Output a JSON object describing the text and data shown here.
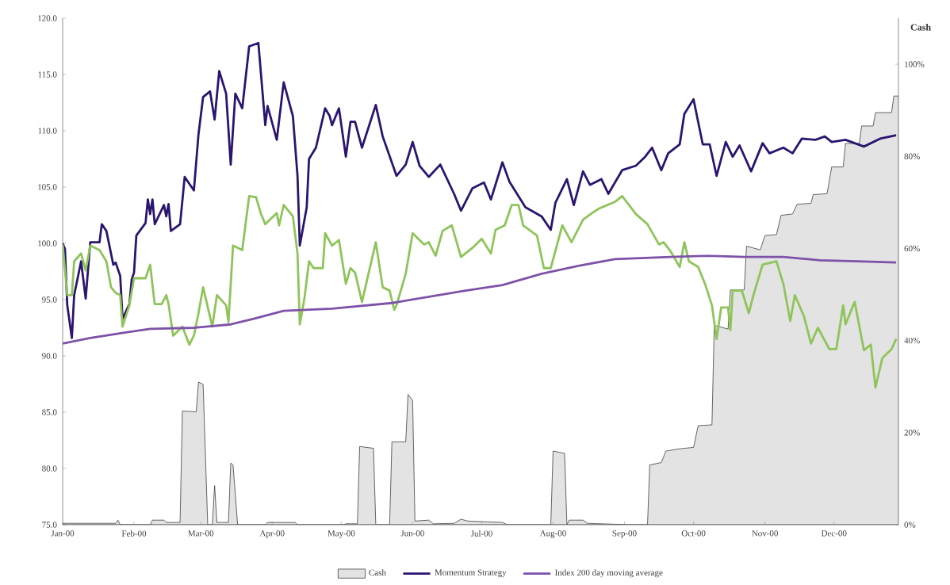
{
  "chart_data": {
    "type": "line",
    "y2label": "Cash",
    "legend": "bottom",
    "xlim": [
      "2000-01-01",
      "2000-12-29"
    ],
    "xticks": [
      {
        "value": "2000-01-01",
        "label": "Jan-00"
      },
      {
        "value": "2000-02-01",
        "label": "Feb-00"
      },
      {
        "value": "2000-03-01",
        "label": "Mar-00"
      },
      {
        "value": "2000-04-01",
        "label": "Apr-00"
      },
      {
        "value": "2000-05-01",
        "label": "May-00"
      },
      {
        "value": "2000-06-01",
        "label": "Jun-00"
      },
      {
        "value": "2000-07-01",
        "label": "Jul-00"
      },
      {
        "value": "2000-08-01",
        "label": "Aug-00"
      },
      {
        "value": "2000-09-01",
        "label": "Sep-00"
      },
      {
        "value": "2000-10-01",
        "label": "Oct-00"
      },
      {
        "value": "2000-11-01",
        "label": "Nov-00"
      },
      {
        "value": "2000-12-01",
        "label": "Dec-00"
      }
    ],
    "ylim": [
      75,
      120
    ],
    "yticks": [
      {
        "value": 75,
        "label": "75.0"
      },
      {
        "value": 80,
        "label": "80.0"
      },
      {
        "value": 85,
        "label": "85.0"
      },
      {
        "value": 90,
        "label": "90.0"
      },
      {
        "value": 95,
        "label": "95.0"
      },
      {
        "value": 100,
        "label": "100.0"
      },
      {
        "value": 105,
        "label": "105.0"
      },
      {
        "value": 110,
        "label": "110.0"
      },
      {
        "value": 115,
        "label": "115.0"
      },
      {
        "value": 120,
        "label": "120.0"
      }
    ],
    "y2lim": [
      0,
      110
    ],
    "y2ticks": [
      {
        "value": 0,
        "label": "0%"
      },
      {
        "value": 20,
        "label": "20%"
      },
      {
        "value": 40,
        "label": "40%"
      },
      {
        "value": 60,
        "label": "60%"
      },
      {
        "value": 80,
        "label": "80%"
      },
      {
        "value": 100,
        "label": "100%"
      }
    ],
    "series": [
      {
        "name": "Cash",
        "type": "area",
        "axis": "y2",
        "color": "#e3e3e3",
        "x": [
          "2000-01-01",
          "2000-01-24",
          "2000-01-25",
          "2000-01-26",
          "2000-02-08",
          "2000-02-09",
          "2000-02-14",
          "2000-02-15",
          "2000-02-21",
          "2000-02-22",
          "2000-02-28",
          "2000-02-29",
          "2000-03-02",
          "2000-03-04",
          "2000-03-06",
          "2000-03-07",
          "2000-03-08",
          "2000-03-13",
          "2000-03-14",
          "2000-03-15",
          "2000-03-17",
          "2000-03-29",
          "2000-03-30",
          "2000-04-11",
          "2000-04-12",
          "2000-05-02",
          "2000-05-03",
          "2000-05-08",
          "2000-05-09",
          "2000-05-15",
          "2000-05-16",
          "2000-05-22",
          "2000-05-23",
          "2000-05-29",
          "2000-05-30",
          "2000-06-01",
          "2000-06-02",
          "2000-06-08",
          "2000-06-10",
          "2000-06-19",
          "2000-06-22",
          "2000-06-25",
          "2000-07-10",
          "2000-07-12",
          "2000-07-31",
          "2000-08-01",
          "2000-08-06",
          "2000-08-07",
          "2000-08-08",
          "2000-08-14",
          "2000-08-16",
          "2000-09-03",
          "2000-09-11",
          "2000-09-12",
          "2000-09-17",
          "2000-09-19",
          "2000-09-25",
          "2000-10-01",
          "2000-10-03",
          "2000-10-09",
          "2000-10-10",
          "2000-10-16",
          "2000-10-17",
          "2000-10-23",
          "2000-10-24",
          "2000-10-30",
          "2000-11-01",
          "2000-11-06",
          "2000-11-08",
          "2000-11-13",
          "2000-11-15",
          "2000-11-21",
          "2000-11-22",
          "2000-11-28",
          "2000-11-30",
          "2000-12-05",
          "2000-12-06",
          "2000-12-12",
          "2000-12-13",
          "2000-12-18",
          "2000-12-19",
          "2000-12-26",
          "2000-12-27",
          "2000-12-29"
        ],
        "values": [
          0.3,
          0.3,
          1,
          0,
          0,
          1,
          1,
          0.5,
          0.5,
          24.7,
          24.5,
          31,
          30.5,
          0,
          0,
          8.5,
          0.5,
          0.5,
          13.4,
          13,
          0,
          0,
          0.5,
          0.5,
          0,
          0,
          0.2,
          0.2,
          17,
          16.6,
          0,
          0,
          18,
          18,
          28.3,
          27,
          0.8,
          1,
          0.2,
          0.3,
          1.2,
          0.8,
          0.5,
          0,
          0,
          16,
          15.5,
          0,
          1,
          1,
          0.3,
          0,
          0,
          13,
          13.5,
          16,
          16.5,
          16.8,
          21.5,
          21.7,
          43.3,
          42.5,
          51,
          51,
          60.5,
          59.7,
          62.8,
          63,
          67.2,
          67.5,
          69.6,
          69.8,
          71.7,
          71.9,
          77.7,
          77.7,
          82.8,
          82.8,
          86.6,
          86.6,
          89.5,
          89.5,
          93.1,
          93.1
        ]
      },
      {
        "name": "Momentum Strategy",
        "color": "#2b1570",
        "x": [
          "2000-01-01",
          "2000-01-02",
          "2000-01-03",
          "2000-01-05",
          "2000-01-06",
          "2000-01-09",
          "2000-01-11",
          "2000-01-13",
          "2000-01-17",
          "2000-01-18",
          "2000-01-20",
          "2000-01-23",
          "2000-01-24",
          "2000-01-26",
          "2000-01-27",
          "2000-01-30",
          "2000-01-31",
          "2000-02-01",
          "2000-02-02",
          "2000-02-06",
          "2000-02-07",
          "2000-02-08",
          "2000-02-09",
          "2000-02-10",
          "2000-02-14",
          "2000-02-15",
          "2000-02-16",
          "2000-02-17",
          "2000-02-21",
          "2000-02-23",
          "2000-02-27",
          "2000-02-29",
          "2000-03-02",
          "2000-03-05",
          "2000-03-07",
          "2000-03-09",
          "2000-03-12",
          "2000-03-14",
          "2000-03-16",
          "2000-03-19",
          "2000-03-22",
          "2000-03-26",
          "2000-03-29",
          "2000-03-30",
          "2000-04-03",
          "2000-04-06",
          "2000-04-10",
          "2000-04-12",
          "2000-04-13",
          "2000-04-16",
          "2000-04-17",
          "2000-04-20",
          "2000-04-24",
          "2000-04-26",
          "2000-04-27",
          "2000-04-30",
          "2000-05-03",
          "2000-05-05",
          "2000-05-07",
          "2000-05-10",
          "2000-05-16",
          "2000-05-19",
          "2000-05-25",
          "2000-05-29",
          "2000-06-01",
          "2000-06-04",
          "2000-06-08",
          "2000-06-13",
          "2000-06-19",
          "2000-06-22",
          "2000-06-27",
          "2000-07-02",
          "2000-07-05",
          "2000-07-10",
          "2000-07-13",
          "2000-07-20",
          "2000-07-27",
          "2000-07-31",
          "2000-08-02",
          "2000-08-07",
          "2000-08-10",
          "2000-08-14",
          "2000-08-17",
          "2000-08-22",
          "2000-08-25",
          "2000-08-31",
          "2000-09-06",
          "2000-09-10",
          "2000-09-13",
          "2000-09-17",
          "2000-09-20",
          "2000-09-25",
          "2000-09-27",
          "2000-10-01",
          "2000-10-05",
          "2000-10-08",
          "2000-10-11",
          "2000-10-15",
          "2000-10-18",
          "2000-10-21",
          "2000-10-26",
          "2000-10-31",
          "2000-11-03",
          "2000-11-09",
          "2000-11-13",
          "2000-11-17",
          "2000-11-23",
          "2000-11-27",
          "2000-11-30",
          "2000-12-06",
          "2000-12-14",
          "2000-12-21",
          "2000-12-28"
        ],
        "values": [
          100,
          99.5,
          94.5,
          91.6,
          95.4,
          98.4,
          95.1,
          100.1,
          100.1,
          101.7,
          101.1,
          98.1,
          98.3,
          97.1,
          93.3,
          94.6,
          96.8,
          97.4,
          100.7,
          101.8,
          103.9,
          102.6,
          103.9,
          101.7,
          103.4,
          102.4,
          103.5,
          101.1,
          101.7,
          105.9,
          104.7,
          109.7,
          113.0,
          113.5,
          111.0,
          115.3,
          113.3,
          107.0,
          113.3,
          112.0,
          117.5,
          117.8,
          110.5,
          112.2,
          109.2,
          114.3,
          111.3,
          106.0,
          99.8,
          103.2,
          107.5,
          108.5,
          112.0,
          111.3,
          110.5,
          112.0,
          107.7,
          110.8,
          110.8,
          108.5,
          112.3,
          109.5,
          106.0,
          107.0,
          109.0,
          106.9,
          105.9,
          107.0,
          104.4,
          102.9,
          104.9,
          105.4,
          103.9,
          107.2,
          105.5,
          103.2,
          102.4,
          101.2,
          103.6,
          105.7,
          103.4,
          106.4,
          105.2,
          105.7,
          104.4,
          106.5,
          106.9,
          107.7,
          108.5,
          106.5,
          108.0,
          108.8,
          111.5,
          112.8,
          108.8,
          108.8,
          106.0,
          109.0,
          107.7,
          108.7,
          106.4,
          108.9,
          108.0,
          108.5,
          108.0,
          109.3,
          109.2,
          109.5,
          109.0,
          109.2,
          108.6,
          109.3,
          109.6
        ]
      },
      {
        "color": "#8fc45a",
        "x": [
          "2000-01-01",
          "2000-01-03",
          "2000-01-05",
          "2000-01-06",
          "2000-01-09",
          "2000-01-11",
          "2000-01-13",
          "2000-01-17",
          "2000-01-20",
          "2000-01-22",
          "2000-01-24",
          "2000-01-26",
          "2000-01-27",
          "2000-01-30",
          "2000-02-01",
          "2000-02-06",
          "2000-02-08",
          "2000-02-09",
          "2000-02-10",
          "2000-02-13",
          "2000-02-15",
          "2000-02-16",
          "2000-02-18",
          "2000-02-22",
          "2000-02-25",
          "2000-02-27",
          "2000-02-29",
          "2000-03-02",
          "2000-03-06",
          "2000-03-08",
          "2000-03-12",
          "2000-03-13",
          "2000-03-15",
          "2000-03-19",
          "2000-03-22",
          "2000-03-25",
          "2000-03-27",
          "2000-03-29",
          "2000-04-03",
          "2000-04-04",
          "2000-04-06",
          "2000-04-10",
          "2000-04-12",
          "2000-04-13",
          "2000-04-15",
          "2000-04-17",
          "2000-04-19",
          "2000-04-23",
          "2000-04-24",
          "2000-04-27",
          "2000-04-30",
          "2000-05-03",
          "2000-05-05",
          "2000-05-07",
          "2000-05-10",
          "2000-05-16",
          "2000-05-19",
          "2000-05-22",
          "2000-05-24",
          "2000-05-25",
          "2000-05-29",
          "2000-06-01",
          "2000-06-06",
          "2000-06-08",
          "2000-06-11",
          "2000-06-14",
          "2000-06-18",
          "2000-06-22",
          "2000-06-27",
          "2000-07-01",
          "2000-07-05",
          "2000-07-07",
          "2000-07-11",
          "2000-07-14",
          "2000-07-17",
          "2000-07-19",
          "2000-07-25",
          "2000-07-28",
          "2000-07-31",
          "2000-08-05",
          "2000-08-09",
          "2000-08-14",
          "2000-08-18",
          "2000-08-21",
          "2000-08-28",
          "2000-08-31",
          "2000-09-06",
          "2000-09-11",
          "2000-09-16",
          "2000-09-18",
          "2000-09-21",
          "2000-09-25",
          "2000-09-27",
          "2000-09-29",
          "2000-10-03",
          "2000-10-06",
          "2000-10-09",
          "2000-10-11",
          "2000-10-13",
          "2000-10-16",
          "2000-10-17",
          "2000-10-18",
          "2000-10-22",
          "2000-10-25",
          "2000-10-27",
          "2000-10-31",
          "2000-11-06",
          "2000-11-09",
          "2000-11-12",
          "2000-11-14",
          "2000-11-18",
          "2000-11-21",
          "2000-11-24",
          "2000-11-29",
          "2000-12-02",
          "2000-12-05",
          "2000-12-06",
          "2000-12-10",
          "2000-12-14",
          "2000-12-17",
          "2000-12-19",
          "2000-12-22",
          "2000-12-26",
          "2000-12-28"
        ],
        "values": [
          99.9,
          95.4,
          95.4,
          98.4,
          99.1,
          97.6,
          99.8,
          99.4,
          98.4,
          96.1,
          95.6,
          95.4,
          92.6,
          94.5,
          96.9,
          96.9,
          98.1,
          96.3,
          94.6,
          94.6,
          95.4,
          94.6,
          91.8,
          92.6,
          91.0,
          91.8,
          93.8,
          96.1,
          92.6,
          95.4,
          94.5,
          93.0,
          99.8,
          99.4,
          104.2,
          104.1,
          102.7,
          101.7,
          102.7,
          101.6,
          103.4,
          102.4,
          99.1,
          92.8,
          95.1,
          98.4,
          97.8,
          97.8,
          100.9,
          99.8,
          100.3,
          96.4,
          97.8,
          97.4,
          94.8,
          100.1,
          96.1,
          95.8,
          94.1,
          94.5,
          97.3,
          100.9,
          99.9,
          100.1,
          98.9,
          101.1,
          101.6,
          98.8,
          99.6,
          100.4,
          99.1,
          101.2,
          101.6,
          103.4,
          103.4,
          101.6,
          100.7,
          97.8,
          97.8,
          101.6,
          100.1,
          102.1,
          102.7,
          103.1,
          103.7,
          104.2,
          102.6,
          101.7,
          99.9,
          100.1,
          99.3,
          97.9,
          100.1,
          98.4,
          97.9,
          96.4,
          94.5,
          91.5,
          94.3,
          94.3,
          92.3,
          95.8,
          95.8,
          93.8,
          95.4,
          98.1,
          98.4,
          96.4,
          93.1,
          95.4,
          93.5,
          91.1,
          92.5,
          90.6,
          90.6,
          94.5,
          92.8,
          94.8,
          90.5,
          91.0,
          87.2,
          89.8,
          90.6,
          91.5
        ]
      },
      {
        "name": "Index 200 day moving average",
        "color": "#7d52a8",
        "x": [
          "2000-01-01",
          "2000-01-13",
          "2000-01-29",
          "2000-02-08",
          "2000-02-27",
          "2000-03-14",
          "2000-03-24",
          "2000-04-06",
          "2000-04-27",
          "2000-05-23",
          "2000-06-24",
          "2000-07-10",
          "2000-07-27",
          "2000-08-12",
          "2000-08-28",
          "2000-09-21",
          "2000-10-07",
          "2000-10-23",
          "2000-11-09",
          "2000-11-25",
          "2000-12-11",
          "2000-12-28"
        ],
        "values": [
          91.1,
          91.6,
          92.1,
          92.4,
          92.5,
          92.8,
          93.3,
          94.0,
          94.2,
          94.7,
          95.8,
          96.3,
          97.3,
          98.0,
          98.6,
          98.8,
          98.9,
          98.8,
          98.8,
          98.5,
          98.4,
          98.3
        ]
      }
    ]
  }
}
